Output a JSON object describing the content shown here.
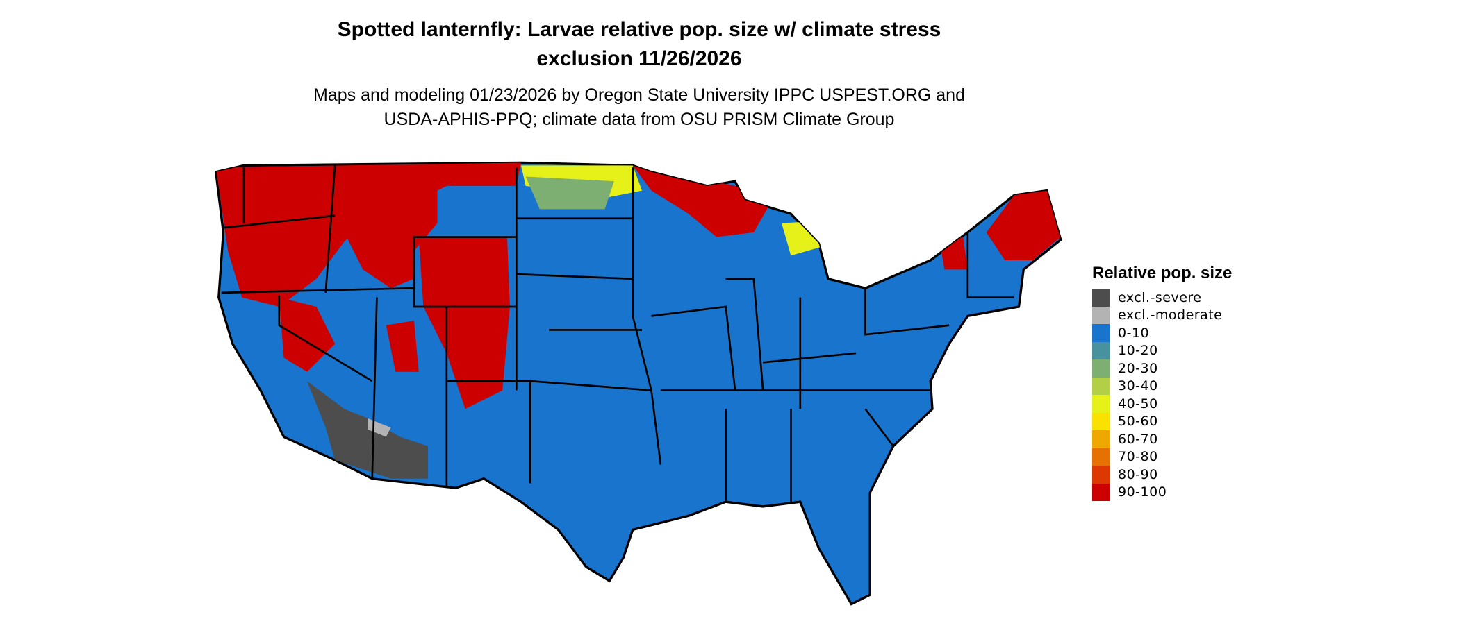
{
  "title": {
    "line1": "Spotted lanternfly: Larvae relative pop. size w/ climate stress",
    "line2": "exclusion 11/26/2026"
  },
  "subtitle": {
    "line1": "Maps and modeling 01/23/2026 by Oregon State University IPPC USPEST.ORG and",
    "line2": "USDA-APHIS-PPQ; climate data from OSU PRISM Climate Group"
  },
  "map": {
    "region": "Contiguous United States",
    "base_color": "#1874CD",
    "border_color": "#000000"
  },
  "legend": {
    "title": "Relative pop. size",
    "items": [
      {
        "label": "excl.-severe",
        "color": "#4D4D4D"
      },
      {
        "label": "excl.-moderate",
        "color": "#B3B3B3"
      },
      {
        "label": "0-10",
        "color": "#1874CD"
      },
      {
        "label": "10-20",
        "color": "#48919E"
      },
      {
        "label": "20-30",
        "color": "#7DAF72"
      },
      {
        "label": "30-40",
        "color": "#B2CF46"
      },
      {
        "label": "40-50",
        "color": "#E5F119"
      },
      {
        "label": "50-60",
        "color": "#F9E100"
      },
      {
        "label": "60-70",
        "color": "#F0A800"
      },
      {
        "label": "70-80",
        "color": "#E67000"
      },
      {
        "label": "80-90",
        "color": "#DC3800"
      },
      {
        "label": "90-100",
        "color": "#CC0000"
      }
    ]
  }
}
